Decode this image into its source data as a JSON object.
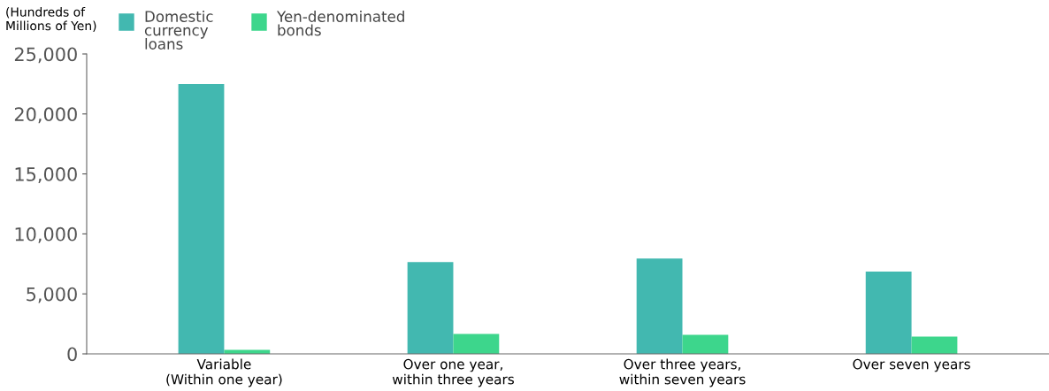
{
  "chart_data": {
    "type": "bar",
    "ylabel": "(Hundreds of\nMillions of Yen)",
    "categories": [
      "Variable\n(Within one year)",
      "Over one year,\nwithin three years",
      "Over three years,\nwithin seven years",
      "Over seven years"
    ],
    "series": [
      {
        "name": "Domestic\ncurrency\nloans",
        "color": "#42b8b0",
        "values": [
          22500,
          7660,
          7950,
          6860
        ]
      },
      {
        "name": "Yen-denominated\nbonds",
        "color": "#3dd68c",
        "values": [
          340,
          1660,
          1590,
          1430
        ]
      }
    ],
    "ylim": [
      0,
      25000
    ],
    "yticks": [
      {
        "value": 0,
        "label": "0"
      },
      {
        "value": 5000,
        "label": "5,000"
      },
      {
        "value": 10000,
        "label": "10,000"
      },
      {
        "value": 15000,
        "label": "15,000"
      },
      {
        "value": 20000,
        "label": "20,000"
      },
      {
        "value": 25000,
        "label": "25,000"
      }
    ],
    "grid": false,
    "legend": "top left"
  }
}
